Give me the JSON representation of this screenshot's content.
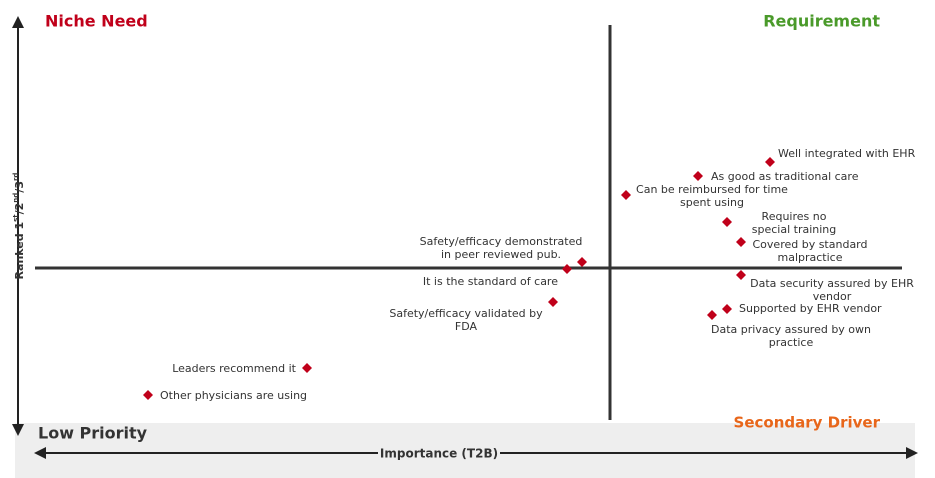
{
  "quadrants": {
    "top_left": "Niche Need",
    "top_right": "Requirement",
    "bottom_left": "Low Priority",
    "bottom_right": "Secondary Driver"
  },
  "y_axis_label": [
    "Ranked 1",
    "st",
    "/2",
    "nd",
    "/3",
    "rd"
  ],
  "x_axis_label": "Importance (T2B)",
  "points": [
    {
      "lines": [
        "Well integrated with EHR"
      ]
    },
    {
      "lines": [
        "As good as traditional care"
      ]
    },
    {
      "lines": [
        "Can be reimbursed for time",
        "spent using"
      ]
    },
    {
      "lines": [
        "Requires no",
        "special training"
      ]
    },
    {
      "lines": [
        "Covered by standard",
        "malpractice"
      ]
    },
    {
      "lines": [
        "Data security assured by EHR",
        "vendor"
      ]
    },
    {
      "lines": [
        "Supported by EHR vendor"
      ]
    },
    {
      "lines": [
        "Data privacy assured by own",
        "practice"
      ]
    },
    {
      "lines": [
        "Safety/efficacy demonstrated",
        "in peer reviewed pub."
      ]
    },
    {
      "lines": [
        "It is the standard of care"
      ]
    },
    {
      "lines": [
        "Safety/efficacy validated by",
        "FDA"
      ]
    },
    {
      "lines": [
        "Leaders recommend it"
      ]
    },
    {
      "lines": [
        "Other physicians are using"
      ]
    }
  ]
}
